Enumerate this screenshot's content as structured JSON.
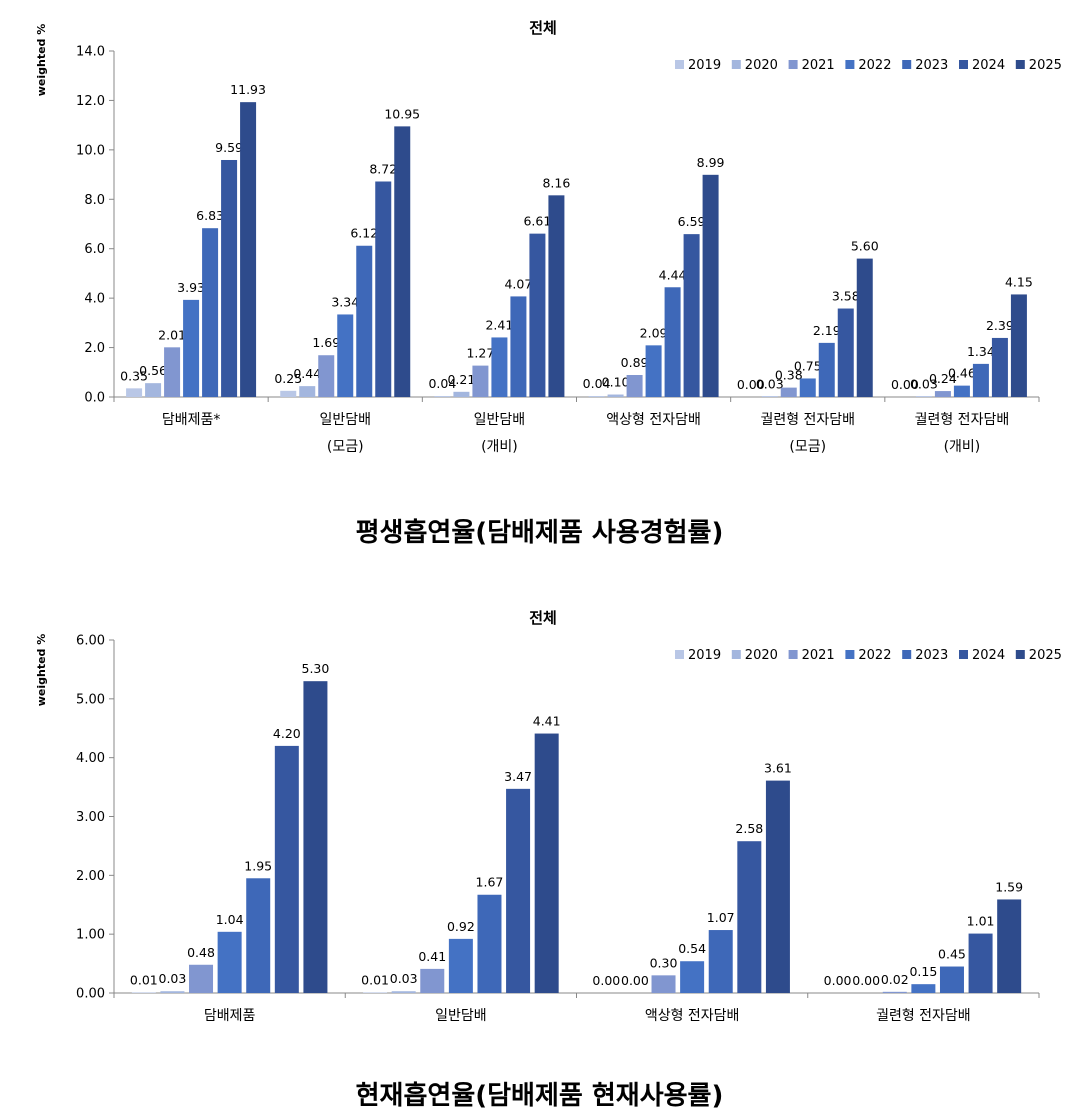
{
  "charts": {
    "lifetime": {
      "caption": "평생흡연율(담배제품 사용경험률)",
      "chart_data": {
        "type": "bar",
        "title": "전체",
        "ylabel": "weighted %",
        "xlabel": "",
        "ylim": [
          0,
          14
        ],
        "ytick_step": 2,
        "ytick_decimals": 1,
        "legend_position": "top-right",
        "grid": false,
        "categories": [
          [
            "담배제품*"
          ],
          [
            "일반담배",
            "(모금)"
          ],
          [
            "일반담배",
            "(개비)"
          ],
          [
            "액상형 전자담배"
          ],
          [
            "궐련형 전자담배",
            "(모금)"
          ],
          [
            "궐련형 전자담배",
            "(개비)"
          ]
        ],
        "series": [
          {
            "name": "2019",
            "color": "#B9C7E6",
            "values": [
              0.35,
              0.25,
              0.04,
              0.04,
              0.0,
              0.0
            ]
          },
          {
            "name": "2020",
            "color": "#A3B6DE",
            "values": [
              0.56,
              0.44,
              0.21,
              0.1,
              0.03,
              0.03
            ]
          },
          {
            "name": "2021",
            "color": "#8196D0",
            "values": [
              2.01,
              1.69,
              1.27,
              0.89,
              0.38,
              0.24
            ]
          },
          {
            "name": "2022",
            "color": "#4472C4",
            "values": [
              3.93,
              3.34,
              2.41,
              2.09,
              0.75,
              0.46
            ]
          },
          {
            "name": "2023",
            "color": "#3E68B8",
            "values": [
              6.83,
              6.12,
              4.07,
              4.44,
              2.19,
              1.34
            ]
          },
          {
            "name": "2024",
            "color": "#3657A0",
            "values": [
              9.59,
              8.72,
              6.61,
              6.59,
              3.58,
              2.39
            ]
          },
          {
            "name": "2025",
            "color": "#2E4B8C",
            "values": [
              11.93,
              10.95,
              8.16,
              8.99,
              5.6,
              4.15
            ]
          }
        ]
      }
    },
    "current": {
      "caption": "현재흡연율(담배제품 현재사용률)",
      "chart_data": {
        "type": "bar",
        "title": "전체",
        "ylabel": "weighted %",
        "xlabel": "",
        "ylim": [
          0,
          6
        ],
        "ytick_step": 1,
        "ytick_decimals": 2,
        "legend_position": "top-right",
        "grid": false,
        "categories": [
          [
            "담배제품"
          ],
          [
            "일반담배"
          ],
          [
            "액상형 전자담배"
          ],
          [
            "궐련형 전자담배"
          ]
        ],
        "series": [
          {
            "name": "2019",
            "color": "#B9C7E6",
            "values": [
              0.01,
              0.01,
              0.0,
              0.0
            ]
          },
          {
            "name": "2020",
            "color": "#A3B6DE",
            "values": [
              0.03,
              0.03,
              0.0,
              0.0
            ]
          },
          {
            "name": "2021",
            "color": "#8196D0",
            "values": [
              0.48,
              0.41,
              0.3,
              0.02
            ]
          },
          {
            "name": "2022",
            "color": "#4472C4",
            "values": [
              1.04,
              0.92,
              0.54,
              0.15
            ]
          },
          {
            "name": "2023",
            "color": "#3E68B8",
            "values": [
              1.95,
              1.67,
              1.07,
              0.45
            ]
          },
          {
            "name": "2024",
            "color": "#3657A0",
            "values": [
              4.2,
              3.47,
              2.58,
              1.01
            ]
          },
          {
            "name": "2025",
            "color": "#2E4B8C",
            "values": [
              5.3,
              4.41,
              3.61,
              1.59
            ]
          }
        ]
      }
    }
  }
}
